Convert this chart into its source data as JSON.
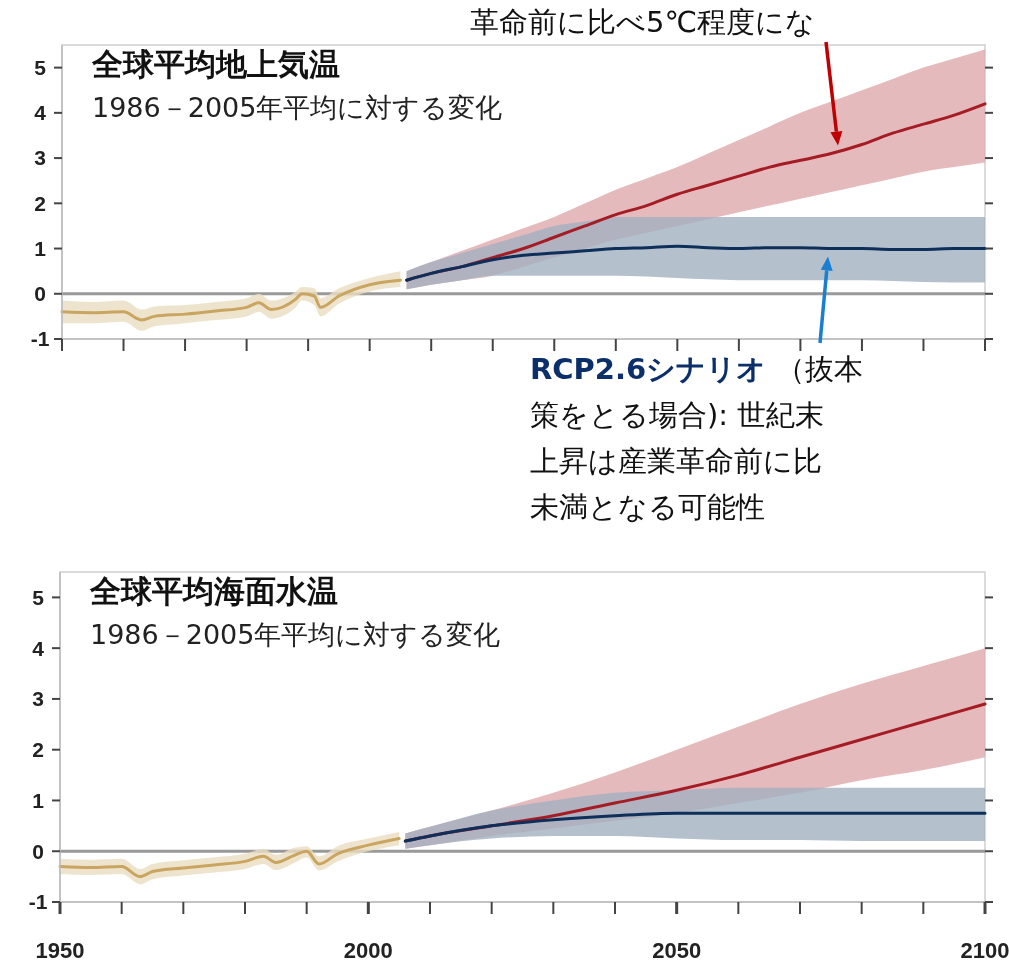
{
  "chart_data": [
    {
      "type": "line",
      "title": "全球平均地上気温",
      "subtitle": "1986－2005年平均に対する変化",
      "xlim": [
        1950,
        2100
      ],
      "ylim": [
        -1,
        5.5
      ],
      "yticks": [
        -1,
        0,
        1,
        2,
        3,
        4,
        5
      ],
      "xticks": [
        {
          "value": 1950,
          "label": null
        },
        {
          "value": 1960,
          "label": null
        },
        {
          "value": 1970,
          "label": null
        },
        {
          "value": 1980,
          "label": null
        },
        {
          "value": 1990,
          "label": null
        },
        {
          "value": 2000,
          "label": null
        },
        {
          "value": 2010,
          "label": null
        },
        {
          "value": 2020,
          "label": null
        },
        {
          "value": 2030,
          "label": null
        },
        {
          "value": 2040,
          "label": null
        },
        {
          "value": 2050,
          "label": null
        },
        {
          "value": 2060,
          "label": null
        },
        {
          "value": 2070,
          "label": null
        },
        {
          "value": 2080,
          "label": null
        },
        {
          "value": 2090,
          "label": null
        },
        {
          "value": 2100,
          "label": null
        }
      ],
      "tick_labels": "y",
      "grid": false,
      "ref_lines": [
        {
          "axis": "y",
          "value": 0,
          "label": null,
          "color": "#999999"
        }
      ],
      "series": [
        {
          "color": "#c9a55f",
          "x": [
            1950,
            1955,
            1960,
            1963,
            1965,
            1970,
            1975,
            1980,
            1982,
            1984,
            1988,
            1989,
            1991,
            1992,
            1995,
            2000,
            2005
          ],
          "values": [
            -0.4,
            -0.42,
            -0.4,
            -0.58,
            -0.5,
            -0.45,
            -0.38,
            -0.3,
            -0.2,
            -0.35,
            -0.12,
            0.0,
            -0.05,
            -0.3,
            -0.05,
            0.2,
            0.3
          ],
          "lower": [
            -0.65,
            -0.65,
            -0.62,
            -0.82,
            -0.72,
            -0.65,
            -0.58,
            -0.5,
            -0.4,
            -0.55,
            -0.3,
            -0.15,
            -0.25,
            -0.5,
            -0.22,
            0.05,
            0.15
          ],
          "upper": [
            -0.15,
            -0.18,
            -0.15,
            -0.35,
            -0.28,
            -0.25,
            -0.18,
            -0.1,
            0.0,
            -0.15,
            0.05,
            0.15,
            0.12,
            -0.1,
            0.12,
            0.35,
            0.5
          ]
        },
        {
          "color": "#a51c24",
          "x": [
            2006,
            2010,
            2015,
            2020,
            2025,
            2030,
            2035,
            2040,
            2045,
            2050,
            2055,
            2060,
            2065,
            2070,
            2075,
            2080,
            2085,
            2090,
            2095,
            2100
          ],
          "values": [
            0.3,
            0.45,
            0.6,
            0.8,
            1.0,
            1.25,
            1.5,
            1.75,
            1.95,
            2.2,
            2.4,
            2.6,
            2.8,
            2.95,
            3.1,
            3.3,
            3.55,
            3.75,
            3.95,
            4.2
          ],
          "lower": [
            0.1,
            0.2,
            0.3,
            0.4,
            0.6,
            0.8,
            1.0,
            1.2,
            1.35,
            1.5,
            1.65,
            1.8,
            1.95,
            2.1,
            2.25,
            2.4,
            2.55,
            2.7,
            2.8,
            2.9
          ],
          "upper": [
            0.5,
            0.7,
            0.95,
            1.2,
            1.45,
            1.7,
            2.0,
            2.3,
            2.55,
            2.8,
            3.1,
            3.4,
            3.7,
            4.0,
            4.25,
            4.5,
            4.75,
            5.0,
            5.2,
            5.4
          ]
        },
        {
          "color": "#0d2f5a",
          "x": [
            2006,
            2010,
            2015,
            2020,
            2025,
            2030,
            2035,
            2040,
            2045,
            2050,
            2055,
            2060,
            2065,
            2070,
            2075,
            2080,
            2085,
            2090,
            2095,
            2100
          ],
          "values": [
            0.3,
            0.45,
            0.6,
            0.75,
            0.85,
            0.9,
            0.95,
            1.0,
            1.02,
            1.05,
            1.02,
            1.0,
            1.02,
            1.02,
            1.0,
            1.0,
            0.98,
            0.98,
            1.0,
            1.0
          ],
          "lower": [
            0.1,
            0.2,
            0.3,
            0.4,
            0.4,
            0.4,
            0.4,
            0.4,
            0.38,
            0.35,
            0.32,
            0.3,
            0.3,
            0.3,
            0.3,
            0.3,
            0.28,
            0.26,
            0.25,
            0.25
          ],
          "upper": [
            0.5,
            0.7,
            0.9,
            1.1,
            1.3,
            1.5,
            1.6,
            1.7,
            1.7,
            1.7,
            1.7,
            1.7,
            1.7,
            1.7,
            1.7,
            1.7,
            1.7,
            1.7,
            1.7,
            1.7
          ]
        }
      ],
      "annotations": [
        "革命前に比べ5℃程度にな",
        "RCP2.6シナリオ",
        "（抜本",
        "策をとる場合): 世紀末",
        "上昇は産業革命前に比",
        "未満となる可能性"
      ]
    },
    {
      "type": "line",
      "title": "全球平均海面水温",
      "subtitle": "1986－2005年平均に対する変化",
      "xlim": [
        1950,
        2100
      ],
      "ylim": [
        -1,
        5.5
      ],
      "yticks": [
        -1,
        0,
        1,
        2,
        3,
        4,
        5
      ],
      "xticks": [
        1950,
        {
          "value": 1960,
          "label": null
        },
        {
          "value": 1970,
          "label": null
        },
        {
          "value": 1980,
          "label": null
        },
        {
          "value": 1990,
          "label": null
        },
        2000,
        {
          "value": 2010,
          "label": null
        },
        {
          "value": 2020,
          "label": null
        },
        {
          "value": 2030,
          "label": null
        },
        {
          "value": 2040,
          "label": null
        },
        2050,
        {
          "value": 2060,
          "label": null
        },
        {
          "value": 2070,
          "label": null
        },
        {
          "value": 2080,
          "label": null
        },
        {
          "value": 2090,
          "label": null
        },
        2100
      ],
      "grid": false,
      "ref_lines": [
        {
          "axis": "y",
          "value": 0,
          "label": null,
          "color": "#999999"
        }
      ],
      "series": [
        {
          "color": "#c9a55f",
          "x": [
            1950,
            1955,
            1960,
            1963,
            1965,
            1970,
            1975,
            1980,
            1983,
            1985,
            1988,
            1990,
            1992,
            1995,
            2000,
            2005
          ],
          "values": [
            -0.3,
            -0.32,
            -0.3,
            -0.5,
            -0.4,
            -0.33,
            -0.27,
            -0.2,
            -0.1,
            -0.22,
            -0.08,
            0.0,
            -0.25,
            -0.05,
            0.12,
            0.25
          ],
          "lower": [
            -0.45,
            -0.47,
            -0.45,
            -0.65,
            -0.55,
            -0.48,
            -0.42,
            -0.35,
            -0.25,
            -0.37,
            -0.23,
            -0.12,
            -0.38,
            -0.2,
            0.0,
            0.12
          ],
          "upper": [
            -0.15,
            -0.17,
            -0.15,
            -0.35,
            -0.25,
            -0.18,
            -0.12,
            -0.05,
            0.05,
            -0.07,
            0.07,
            0.1,
            -0.1,
            0.1,
            0.25,
            0.38
          ]
        },
        {
          "color": "#a51c24",
          "x": [
            2006,
            2010,
            2020,
            2030,
            2040,
            2050,
            2060,
            2070,
            2080,
            2090,
            2100
          ],
          "values": [
            0.2,
            0.3,
            0.5,
            0.7,
            0.95,
            1.2,
            1.5,
            1.85,
            2.2,
            2.55,
            2.9
          ],
          "lower": [
            0.05,
            0.12,
            0.3,
            0.45,
            0.6,
            0.75,
            0.95,
            1.15,
            1.4,
            1.6,
            1.85
          ],
          "upper": [
            0.35,
            0.48,
            0.8,
            1.15,
            1.55,
            2.0,
            2.45,
            2.9,
            3.3,
            3.65,
            4.0
          ]
        },
        {
          "color": "#0d2f5a",
          "x": [
            2006,
            2010,
            2020,
            2030,
            2040,
            2050,
            2060,
            2070,
            2080,
            2090,
            2100
          ],
          "values": [
            0.2,
            0.3,
            0.5,
            0.62,
            0.7,
            0.75,
            0.75,
            0.75,
            0.75,
            0.75,
            0.75
          ],
          "lower": [
            0.05,
            0.12,
            0.25,
            0.3,
            0.3,
            0.25,
            0.22,
            0.22,
            0.2,
            0.2,
            0.2
          ],
          "upper": [
            0.35,
            0.48,
            0.8,
            1.0,
            1.15,
            1.2,
            1.25,
            1.25,
            1.25,
            1.25,
            1.25
          ]
        }
      ]
    }
  ]
}
